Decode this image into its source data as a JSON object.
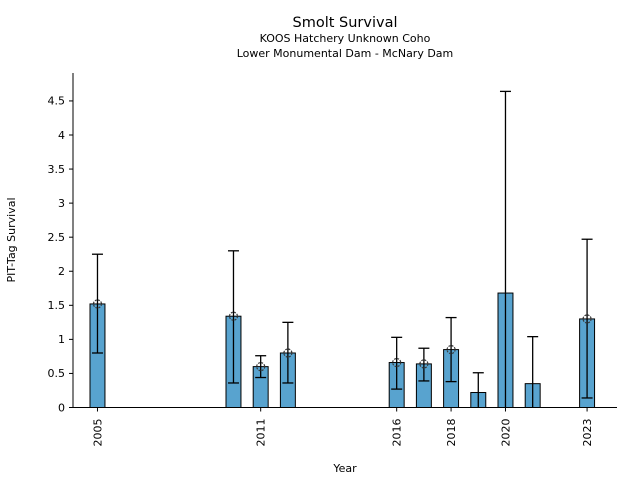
{
  "title": "Smolt Survival",
  "subtitle_line1": "KOOS Hatchery Unknown Coho",
  "subtitle_line2": "Lower Monumental Dam - McNary Dam",
  "chart_data": {
    "type": "bar",
    "title": "Smolt Survival",
    "subtitle": [
      "KOOS Hatchery Unknown Coho",
      "Lower Monumental Dam - McNary Dam"
    ],
    "xlabel": "Year",
    "ylabel": "PIT-Tag Survival",
    "ylim": [
      0,
      4.91
    ],
    "xlim": [
      2004.1,
      2024.1
    ],
    "yticks": [
      0,
      0.5,
      1,
      1.5,
      2,
      2.5,
      3,
      3.5,
      4,
      4.5
    ],
    "ytick_labels": [
      "0",
      "0.5",
      "1",
      "1.5",
      "2",
      "2.5",
      "3",
      "3.5",
      "4",
      "4.5"
    ],
    "xticks": [
      2005,
      2011,
      2016,
      2018,
      2020,
      2023
    ],
    "xtick_labels": [
      "2005",
      "2011",
      "2016",
      "2018",
      "2020",
      "2023"
    ],
    "grid": false,
    "legend": null,
    "bar_width_years": 0.55,
    "bar_color": "#58A3CF",
    "bar_edge_color": "#000000",
    "error_color": "#000000",
    "marker_color": "#3a3a3a",
    "bars": [
      {
        "year": 2005,
        "value": 1.52,
        "err_low": 0.8,
        "err_high": 2.25,
        "marker": true
      },
      {
        "year": 2010,
        "value": 1.34,
        "err_low": 0.36,
        "err_high": 2.3,
        "marker": true
      },
      {
        "year": 2011,
        "value": 0.6,
        "err_low": 0.44,
        "err_high": 0.76,
        "marker": true
      },
      {
        "year": 2012,
        "value": 0.8,
        "err_low": 0.36,
        "err_high": 1.25,
        "marker": true
      },
      {
        "year": 2016,
        "value": 0.66,
        "err_low": 0.27,
        "err_high": 1.03,
        "marker": true
      },
      {
        "year": 2017,
        "value": 0.64,
        "err_low": 0.39,
        "err_high": 0.87,
        "marker": true
      },
      {
        "year": 2018,
        "value": 0.85,
        "err_low": 0.38,
        "err_high": 1.32,
        "marker": true
      },
      {
        "year": 2019,
        "value": 0.22,
        "err_low": 0.0,
        "err_high": 0.51,
        "marker": false
      },
      {
        "year": 2020,
        "value": 1.68,
        "err_low": 0.0,
        "err_high": 4.64,
        "marker": false
      },
      {
        "year": 2021,
        "value": 0.35,
        "err_low": 0.0,
        "err_high": 1.04,
        "marker": false
      },
      {
        "year": 2023,
        "value": 1.3,
        "err_low": 0.14,
        "err_high": 2.47,
        "marker": true
      }
    ]
  }
}
